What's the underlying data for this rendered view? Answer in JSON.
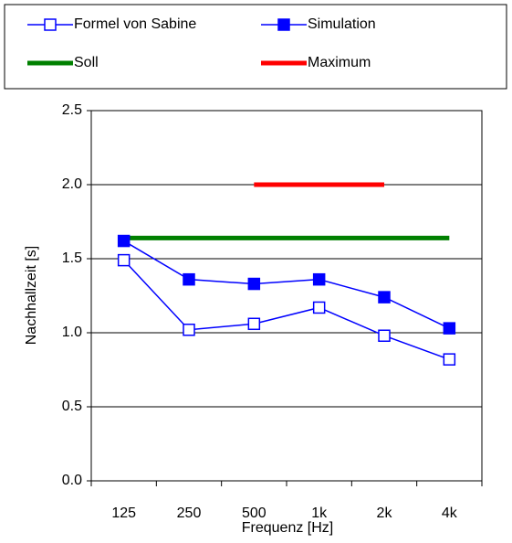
{
  "chart_data": {
    "type": "line",
    "categories": [
      "125",
      "250",
      "500",
      "1k",
      "2k",
      "4k"
    ],
    "x_label": "Frequenz [Hz]",
    "y_label": "Nachhallzeit [s]",
    "ylim": [
      0,
      2.5
    ],
    "yticks": [
      {
        "value": 0,
        "label": "0.0"
      },
      0.5,
      {
        "value": 1,
        "label": "1.0"
      },
      1.5,
      {
        "value": 2,
        "label": "2.0"
      },
      2.5
    ],
    "grid": true,
    "series": [
      {
        "name": "Formel von Sabine",
        "color": "#0000ff",
        "marker": "open",
        "width": 1.5,
        "values": [
          1.49,
          1.02,
          1.06,
          1.17,
          0.98,
          0.82
        ]
      },
      {
        "name": "Simulation",
        "color": "#0000ff",
        "marker": "filled",
        "width": 1.5,
        "values": [
          1.62,
          1.36,
          1.33,
          1.36,
          1.24,
          1.03
        ]
      },
      {
        "name": "Soll",
        "color": "#008000",
        "width": 5,
        "values": [
          1.64,
          1.64,
          1.64,
          1.64,
          1.64,
          1.64
        ]
      },
      {
        "name": "Maximum",
        "color": "#ff0000",
        "width": 5,
        "values": [
          null,
          null,
          2.0,
          2.0,
          2.0,
          null
        ]
      }
    ]
  }
}
